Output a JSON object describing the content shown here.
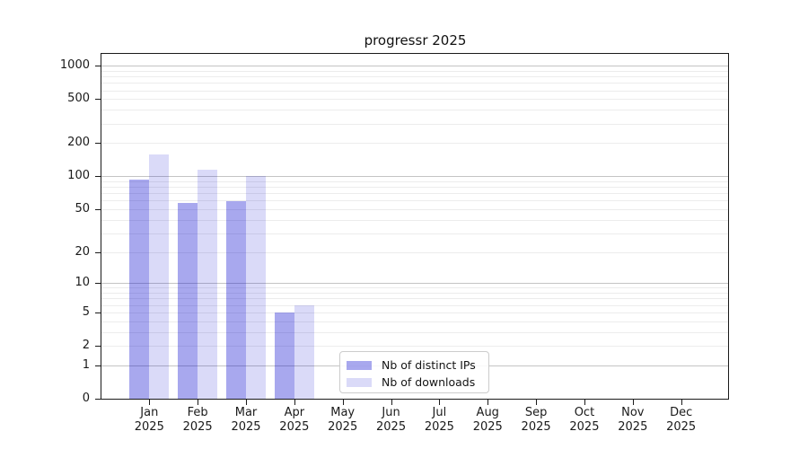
{
  "chart_data": {
    "type": "bar",
    "title": "progressr 2025",
    "x_categories": [
      "Jan",
      "Feb",
      "Mar",
      "Apr",
      "May",
      "Jun",
      "Jul",
      "Aug",
      "Sep",
      "Oct",
      "Nov",
      "Dec"
    ],
    "x_sublabel": "2025",
    "series": [
      {
        "name": "Nb of distinct IPs",
        "color": "#0606ce59",
        "values": [
          93,
          57,
          59,
          5,
          null,
          null,
          null,
          null,
          null,
          null,
          null,
          null
        ]
      },
      {
        "name": "Nb of downloads",
        "color": "#0606ce26",
        "values": [
          159,
          114,
          101,
          6,
          null,
          null,
          null,
          null,
          null,
          null,
          null,
          null
        ]
      }
    ],
    "y_scale": "log1p",
    "y_max": 1280,
    "y_ticks": [
      1000,
      500,
      200,
      100,
      50,
      20,
      10,
      5,
      2,
      1,
      0
    ],
    "y_gridlines_major": [
      1,
      10,
      100,
      1000
    ],
    "y_gridlines_minor": [
      2,
      3,
      4,
      5,
      6,
      7,
      8,
      9,
      20,
      30,
      40,
      50,
      60,
      70,
      80,
      90,
      200,
      300,
      400,
      500,
      600,
      700,
      800,
      900
    ],
    "legend_position": "lower center",
    "grid": "horizontal only",
    "colors": {
      "grid_minor": "#ececec",
      "grid_major": "#c4c4c4",
      "axis": "#1a1a1a",
      "background": "#ffffff"
    }
  }
}
